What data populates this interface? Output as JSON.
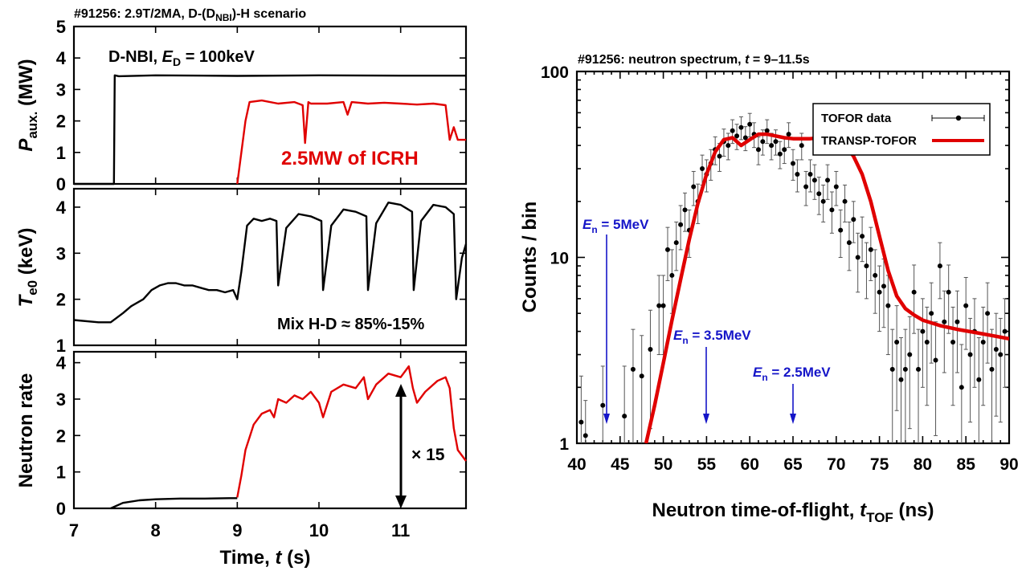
{
  "colors": {
    "nbi": "#000000",
    "icrh": "#e00000",
    "te": "#000000",
    "neutron_early": "#000000",
    "neutron_late": "#e00000",
    "data_points": "#000000",
    "transp": "#e00000",
    "energy_marker": "#1515c8"
  },
  "left_figure": {
    "title_main": "#91256: 2.9T/2MA, D-(D",
    "title_sub": "NBI",
    "title_end": ")-H scenario",
    "xlabel_main": "Time, ",
    "xlabel_sym": "t",
    "xlabel_unit": " (s)",
    "annotation_nbi_main": "D-NBI, ",
    "annotation_nbi_sym": "E",
    "annotation_nbi_sub": "D",
    "annotation_nbi_end": " = 100keV",
    "annotation_icrh": "2.5MW of ICRH",
    "annotation_mix": "Mix H-D ≈ 85%-15%",
    "annotation_factor": "× 15",
    "ylabel_paux_sym": "P",
    "ylabel_paux_sub": "aux.",
    "ylabel_paux_unit": " (MW)",
    "ylabel_te_sym": "T",
    "ylabel_te_sub": "e0",
    "ylabel_te_unit": " (keV)",
    "ylabel_neutron": "Neutron rate"
  },
  "right_figure": {
    "title_main": "#91256: neutron spectrum, ",
    "title_sym": "t",
    "title_end": " = 9–11.5s",
    "ylabel": "Counts / bin",
    "xlabel_main": "Neutron time-of-flight, ",
    "xlabel_sym": "t",
    "xlabel_sub": "TOF",
    "xlabel_unit": " (ns)",
    "legend_data": "TOFOR data",
    "legend_model": "TRANSP-TOFOR",
    "markers": [
      {
        "sym": "E",
        "sub": "n",
        "label": " = 5MeV"
      },
      {
        "sym": "E",
        "sub": "n",
        "label": " = 3.5MeV"
      },
      {
        "sym": "E",
        "sub": "n",
        "label": " = 2.5MeV"
      }
    ]
  },
  "chart_data": [
    {
      "type": "line",
      "panel": "Paux",
      "xlim": [
        7,
        11.8
      ],
      "ylim": [
        0,
        5
      ],
      "yticks": [
        "0",
        "1",
        "2",
        "3",
        "4",
        "5"
      ],
      "xticks": [
        "7",
        "8",
        "9",
        "10",
        "11"
      ],
      "series": [
        {
          "x": [
            7.0,
            7.49,
            7.5,
            7.55,
            8.0,
            9.0,
            10.0,
            11.0,
            11.8
          ],
          "y": [
            0,
            0,
            3.45,
            3.42,
            3.45,
            3.43,
            3.45,
            3.44,
            3.44
          ]
        },
        {
          "x": [
            9.0,
            9.05,
            9.1,
            9.15,
            9.3,
            9.5,
            9.7,
            9.8,
            9.83,
            9.87,
            9.9,
            10.1,
            10.3,
            10.35,
            10.4,
            10.6,
            10.8,
            11.0,
            11.2,
            11.4,
            11.55,
            11.6,
            11.65,
            11.7,
            11.75,
            11.8
          ],
          "y": [
            0,
            1.0,
            2.0,
            2.6,
            2.65,
            2.55,
            2.6,
            2.5,
            1.3,
            2.6,
            2.55,
            2.55,
            2.6,
            2.2,
            2.6,
            2.55,
            2.58,
            2.55,
            2.52,
            2.55,
            2.5,
            1.4,
            1.8,
            1.4,
            1.4,
            1.4
          ]
        }
      ]
    },
    {
      "type": "line",
      "panel": "Te0",
      "xlim": [
        7,
        11.8
      ],
      "ylim": [
        1,
        4.4
      ],
      "yticks": [
        "1",
        "2",
        "3",
        "4"
      ],
      "xticks": [
        "7",
        "8",
        "9",
        "10",
        "11"
      ],
      "series": [
        {
          "x": [
            7.0,
            7.3,
            7.45,
            7.6,
            7.7,
            7.85,
            7.95,
            8.05,
            8.15,
            8.25,
            8.35,
            8.45,
            8.55,
            8.65,
            8.75,
            8.85,
            8.95,
            9.0,
            9.05,
            9.12,
            9.2,
            9.3,
            9.4,
            9.48,
            9.5,
            9.6,
            9.75,
            9.9,
            10.03,
            10.05,
            10.15,
            10.3,
            10.45,
            10.58,
            10.6,
            10.7,
            10.85,
            11.0,
            11.14,
            11.16,
            11.25,
            11.4,
            11.55,
            11.65,
            11.68,
            11.75,
            11.8
          ],
          "y": [
            1.55,
            1.5,
            1.5,
            1.7,
            1.85,
            2.0,
            2.2,
            2.3,
            2.35,
            2.35,
            2.3,
            2.3,
            2.25,
            2.2,
            2.2,
            2.15,
            2.2,
            2.0,
            2.6,
            3.6,
            3.75,
            3.7,
            3.75,
            3.7,
            2.3,
            3.55,
            3.85,
            3.8,
            3.7,
            2.2,
            3.6,
            3.95,
            3.9,
            3.8,
            2.2,
            3.65,
            4.1,
            4.05,
            3.9,
            2.2,
            3.7,
            4.05,
            4.0,
            3.85,
            2.0,
            2.9,
            3.2
          ]
        }
      ]
    },
    {
      "type": "line",
      "panel": "Neutron rate",
      "xlim": [
        7,
        11.8
      ],
      "ylim": [
        0,
        4.3
      ],
      "yticks": [
        "0",
        "1",
        "2",
        "3",
        "4"
      ],
      "xticks": [
        "7",
        "8",
        "9",
        "10",
        "11"
      ],
      "xlabel": "Time, t (s)",
      "series": [
        {
          "x": [
            7.45,
            7.6,
            7.8,
            8.0,
            8.3,
            8.6,
            8.9,
            9.0
          ],
          "y": [
            0.0,
            0.15,
            0.22,
            0.25,
            0.27,
            0.27,
            0.28,
            0.28
          ]
        },
        {
          "x": [
            9.0,
            9.05,
            9.1,
            9.2,
            9.3,
            9.4,
            9.45,
            9.5,
            9.6,
            9.7,
            9.8,
            9.9,
            10.0,
            10.05,
            10.15,
            10.3,
            10.45,
            10.55,
            10.6,
            10.7,
            10.85,
            11.0,
            11.1,
            11.15,
            11.2,
            11.3,
            11.45,
            11.55,
            11.6,
            11.65,
            11.7,
            11.8
          ],
          "y": [
            0.3,
            0.9,
            1.6,
            2.3,
            2.6,
            2.7,
            2.5,
            3.0,
            2.9,
            3.1,
            3.0,
            3.2,
            2.9,
            2.5,
            3.2,
            3.4,
            3.3,
            3.6,
            3.0,
            3.4,
            3.7,
            3.6,
            3.9,
            3.3,
            2.9,
            3.2,
            3.5,
            3.6,
            3.3,
            2.2,
            1.6,
            1.3
          ]
        }
      ]
    },
    {
      "type": "scatter",
      "panel": "neutron spectrum",
      "xlim": [
        40,
        90
      ],
      "ylim": [
        1,
        100
      ],
      "yscale": "log",
      "xticks": [
        "40",
        "45",
        "50",
        "55",
        "60",
        "65",
        "70",
        "75",
        "80",
        "85",
        "90"
      ],
      "yticks": [
        "1",
        "10",
        "100"
      ],
      "xlabel": "Neutron time-of-flight, tTOF (ns)",
      "ylabel": "Counts / bin",
      "series": [
        {
          "x": [
            40.5,
            41,
            43,
            45.5,
            46.5,
            47.5,
            48.5,
            49.5,
            50,
            50.5,
            51,
            51.5,
            52,
            52.5,
            53,
            53.5,
            54,
            54.5,
            55,
            55.5,
            56,
            56.5,
            57,
            57.5,
            58,
            58.5,
            59,
            59.5,
            60,
            60.5,
            61,
            61.5,
            62,
            62.5,
            63,
            63.5,
            64,
            64.5,
            65,
            65.5,
            66,
            66.5,
            67,
            67.5,
            68,
            68.5,
            69,
            69.5,
            70,
            70.5,
            71,
            71.5,
            72,
            72.5,
            73,
            73.5,
            74,
            74.5,
            75,
            75.5,
            76,
            76.5,
            77,
            77.5,
            78,
            78.5,
            79,
            79.5,
            80,
            80.5,
            81,
            81.5,
            82,
            82.5,
            83,
            83.5,
            84,
            84.5,
            85,
            85.5,
            86,
            86.5,
            87,
            87.5,
            88,
            88.5,
            89,
            89.5
          ],
          "y": [
            1.3,
            1.1,
            1.6,
            1.4,
            2.5,
            2.3,
            3.2,
            5.5,
            5.5,
            11,
            8,
            12,
            15,
            18,
            14,
            24,
            20,
            30,
            28,
            32,
            38,
            35,
            42,
            40,
            48,
            45,
            50,
            44,
            52,
            46,
            38,
            42,
            48,
            40,
            42,
            36,
            38,
            46,
            32,
            28,
            40,
            24,
            28,
            26,
            22,
            20,
            26,
            18,
            24,
            14,
            20,
            12,
            16,
            10,
            13,
            9,
            11,
            8,
            6.5,
            7,
            5.5,
            2.5,
            3.5,
            2.2,
            2.5,
            3.0,
            6.5,
            2.5,
            4.0,
            3.5,
            5.0,
            2.8,
            9,
            4.5,
            6.5,
            3.5,
            4.5,
            2.0,
            5.5,
            3.0,
            4.0,
            2.2,
            3.5,
            5.0,
            2.5,
            3.2,
            3.0,
            4.0
          ],
          "errors": [
            1.0,
            0.6,
            1.0,
            1.2,
            1.6,
            1.5,
            2.0,
            2.5,
            2.5,
            3.5,
            3.0,
            3.5,
            4.0,
            4.2,
            4.0,
            5.0,
            4.8,
            5.5,
            5.5,
            6.0,
            6.5,
            6.0,
            7.0,
            6.5,
            7.0,
            7.0,
            7.0,
            6.5,
            7.5,
            7.0,
            6.5,
            6.5,
            7.0,
            6.5,
            6.5,
            6.0,
            6.0,
            7.0,
            6.0,
            5.5,
            6.5,
            5.0,
            5.5,
            5.5,
            5.0,
            4.5,
            5.5,
            4.5,
            5.0,
            4.0,
            4.5,
            3.5,
            4.0,
            3.5,
            3.5,
            3.0,
            3.5,
            3.0,
            2.5,
            2.8,
            2.5,
            1.6,
            2.0,
            1.5,
            1.6,
            1.8,
            2.6,
            1.6,
            2.0,
            1.9,
            2.3,
            1.7,
            3.0,
            2.1,
            2.6,
            1.9,
            2.1,
            1.4,
            2.3,
            1.7,
            2.0,
            1.5,
            1.9,
            2.3,
            1.6,
            1.8,
            1.7,
            2.0
          ]
        },
        {
          "x": [
            48,
            49,
            50,
            51,
            52,
            53,
            54,
            55,
            56,
            57,
            58,
            59,
            60,
            61,
            62,
            63,
            64,
            65,
            66,
            67,
            68,
            69,
            70,
            71,
            72,
            73,
            74,
            75,
            76,
            77,
            78,
            79,
            80,
            82,
            84,
            86,
            88,
            90
          ],
          "y": [
            1.0,
            1.6,
            2.7,
            4.6,
            7.6,
            12.5,
            19.5,
            28,
            37,
            43,
            44,
            40,
            43,
            46,
            46,
            45,
            44,
            43.5,
            43.5,
            43.5,
            44,
            44,
            43,
            40,
            35,
            28,
            20,
            13,
            8.5,
            6.2,
            5.3,
            4.9,
            4.6,
            4.3,
            4.1,
            3.95,
            3.8,
            3.65
          ]
        }
      ],
      "energy_markers_x": [
        45.8,
        55,
        65
      ]
    }
  ]
}
